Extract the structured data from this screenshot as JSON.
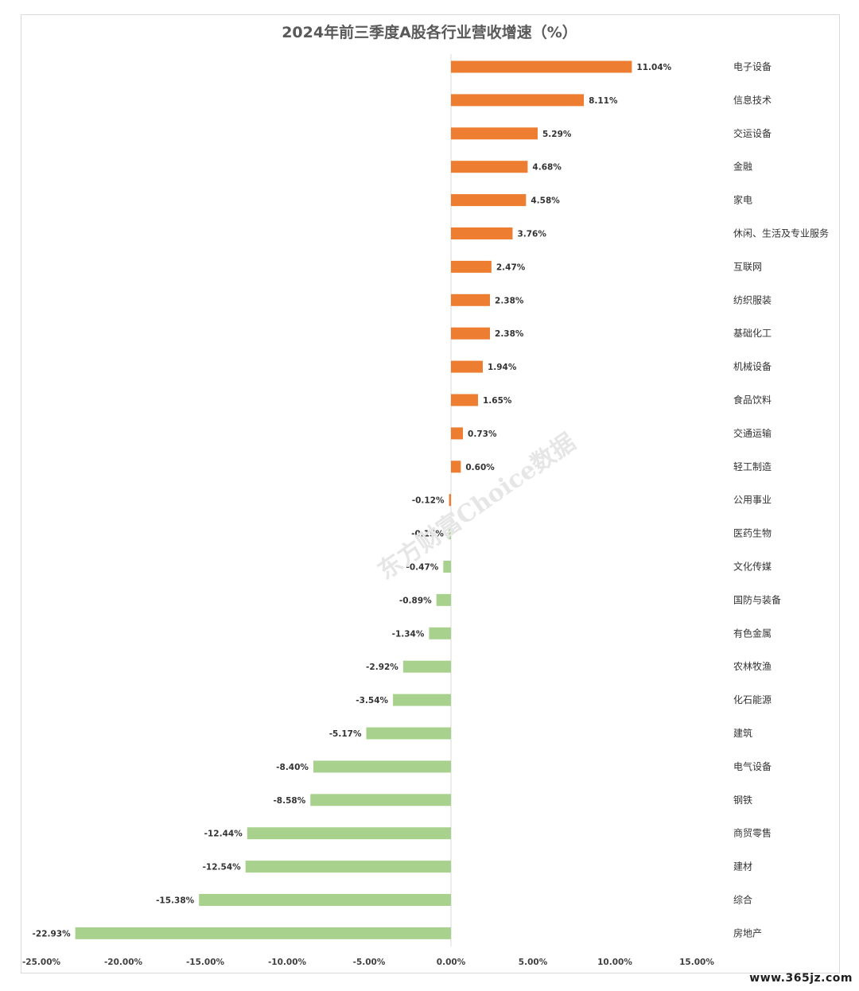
{
  "watermark_text": "东方财富Choice数据",
  "footer_site": "www.365jz.com",
  "colors": {
    "positive": "#ED7D31",
    "negative": "#A9D18E",
    "axis": "#d9d9d9"
  },
  "chart_data": {
    "type": "bar",
    "orientation": "horizontal",
    "title": "2024年前三季度A股各行业营收增速（%）",
    "xlabel": "",
    "ylabel": "",
    "xlim": [
      -25,
      15
    ],
    "xticks": [
      -25,
      -20,
      -15,
      -10,
      -5,
      0,
      5,
      10,
      15
    ],
    "xtick_labels": [
      "-25.00%",
      "-20.00%",
      "-15.00%",
      "-10.00%",
      "-5.00%",
      "0.00%",
      "5.00%",
      "10.00%",
      "15.00%"
    ],
    "grid": false,
    "legend": "none",
    "categories": [
      "电子设备",
      "信息技术",
      "交运设备",
      "金融",
      "家电",
      "休闲、生活及专业服务",
      "互联网",
      "纺织服装",
      "基础化工",
      "机械设备",
      "食品饮料",
      "交通运输",
      "轻工制造",
      "公用事业",
      "医药生物",
      "文化传媒",
      "国防与装备",
      "有色金属",
      "农林牧渔",
      "化石能源",
      "建筑",
      "电气设备",
      "钢铁",
      "商贸零售",
      "建材",
      "综合",
      "房地产"
    ],
    "values": [
      11.04,
      8.11,
      5.29,
      4.68,
      4.58,
      3.76,
      2.47,
      2.38,
      2.38,
      1.94,
      1.65,
      0.73,
      0.6,
      -0.12,
      -0.15,
      -0.47,
      -0.89,
      -1.34,
      -2.92,
      -3.54,
      -5.17,
      -8.4,
      -8.58,
      -12.44,
      -12.54,
      -15.38,
      -22.93
    ],
    "value_labels": [
      "11.04%",
      "8.11%",
      "5.29%",
      "4.68%",
      "4.58%",
      "3.76%",
      "2.47%",
      "2.38%",
      "2.38%",
      "1.94%",
      "1.65%",
      "0.73%",
      "0.60%",
      "-0.12%",
      "-0.15%",
      "-0.47%",
      "-0.89%",
      "-1.34%",
      "-2.92%",
      "-3.54%",
      "-5.17%",
      "-8.40%",
      "-8.58%",
      "-12.44%",
      "-12.54%",
      "-15.38%",
      "-22.93%"
    ],
    "bar_colors": [
      "positive",
      "positive",
      "positive",
      "positive",
      "positive",
      "positive",
      "positive",
      "positive",
      "positive",
      "positive",
      "positive",
      "positive",
      "positive",
      "positive",
      "negative",
      "negative",
      "negative",
      "negative",
      "negative",
      "negative",
      "negative",
      "negative",
      "negative",
      "negative",
      "negative",
      "negative",
      "negative"
    ]
  }
}
